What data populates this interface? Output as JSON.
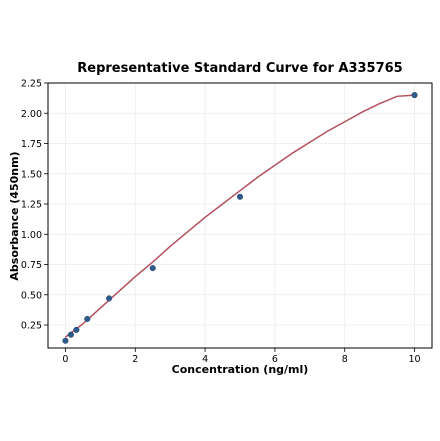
{
  "chart_data": {
    "type": "scatter",
    "title": "Representative Standard Curve for A335765",
    "xlabel": "Concentration (ng/ml)",
    "ylabel": "Absorbance (450nm)",
    "xlim": [
      -0.5,
      10.5
    ],
    "ylim": [
      0.06,
      2.25
    ],
    "x_ticks": [
      0,
      2,
      4,
      6,
      8,
      10
    ],
    "x_tick_labels": [
      "0",
      "2",
      "4",
      "6",
      "8",
      "10"
    ],
    "y_ticks": [
      0.25,
      0.5,
      0.75,
      1.0,
      1.25,
      1.5,
      1.75,
      2.0,
      2.25
    ],
    "y_tick_labels": [
      "0.25",
      "0.50",
      "0.75",
      "1.00",
      "1.25",
      "1.50",
      "1.75",
      "2.00",
      "2.25"
    ],
    "grid": true,
    "series": [
      {
        "kind": "points",
        "color": "#2f5b8c",
        "x": [
          0,
          0.156,
          0.3125,
          0.625,
          1.25,
          2.5,
          5,
          10
        ],
        "y": [
          0.12,
          0.17,
          0.21,
          0.3,
          0.47,
          0.72,
          1.31,
          2.15
        ]
      },
      {
        "kind": "fit-curve",
        "color": "#b5505e",
        "x": [
          0,
          0.5,
          1,
          1.5,
          2,
          2.5,
          3,
          3.5,
          4,
          4.5,
          5,
          5.5,
          6,
          6.5,
          7,
          7.5,
          8,
          8.5,
          9,
          9.5,
          10
        ],
        "y": [
          0.15,
          0.26,
          0.39,
          0.52,
          0.65,
          0.77,
          0.9,
          1.02,
          1.14,
          1.25,
          1.36,
          1.47,
          1.57,
          1.67,
          1.76,
          1.85,
          1.93,
          2.01,
          2.08,
          2.14,
          2.15
        ]
      }
    ]
  }
}
